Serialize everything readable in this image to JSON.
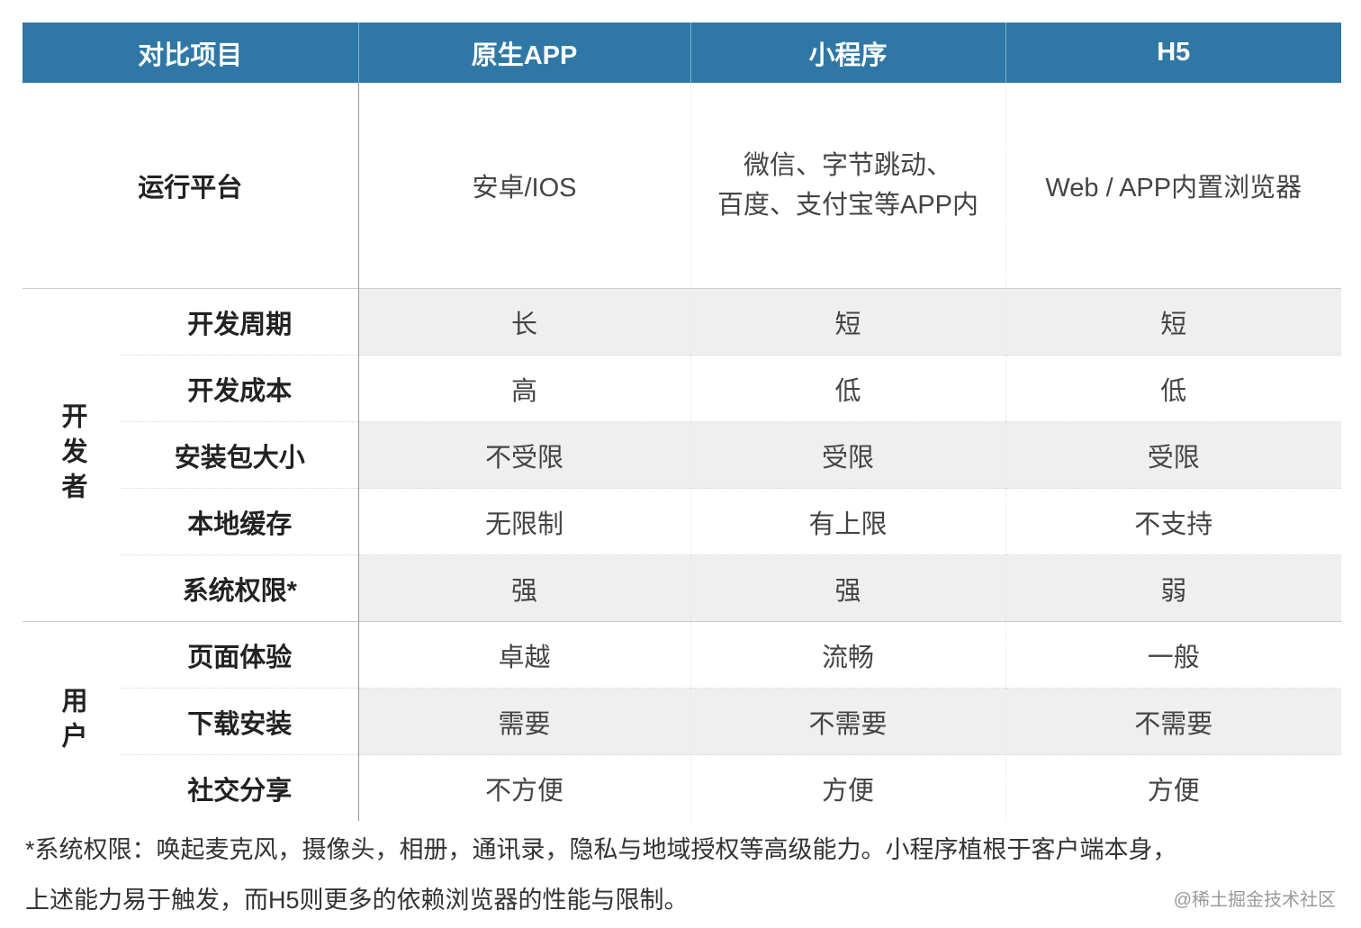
{
  "header": [
    "对比项目",
    "原生APP",
    "小程序",
    "H5"
  ],
  "platform": {
    "label": "运行平台",
    "values": [
      "安卓/IOS",
      "微信、字节跳动、\n百度、支付宝等APP内",
      "Web / APP内置浏览器"
    ]
  },
  "groups": [
    {
      "label": "开发者",
      "rows": [
        {
          "label": "开发周期",
          "values": [
            "长",
            "短",
            "短"
          ]
        },
        {
          "label": "开发成本",
          "values": [
            "高",
            "低",
            "低"
          ]
        },
        {
          "label": "安装包大小",
          "values": [
            "不受限",
            "受限",
            "受限"
          ]
        },
        {
          "label": "本地缓存",
          "values": [
            "无限制",
            "有上限",
            "不支持"
          ]
        },
        {
          "label": "系统权限*",
          "values": [
            "强",
            "强",
            "弱"
          ]
        }
      ]
    },
    {
      "label": "用户",
      "rows": [
        {
          "label": "页面体验",
          "values": [
            "卓越",
            "流畅",
            "一般"
          ]
        },
        {
          "label": "下载安装",
          "values": [
            "需要",
            "不需要",
            "不需要"
          ]
        },
        {
          "label": "社交分享",
          "values": [
            "不方便",
            "方便",
            "方便"
          ]
        }
      ]
    }
  ],
  "footnote": {
    "line1": "*系统权限：唤起麦克风，摄像头，相册，通讯录，隐私与地域授权等高级能力。小程序植根于客户端本身，",
    "line2": "上述能力易于触发，而H5则更多的依赖浏览器的性能与限制。"
  },
  "watermark": "@稀土掘金技术社区",
  "colors": {
    "header_bg": "#2f78a6",
    "shade": "#efefef"
  }
}
